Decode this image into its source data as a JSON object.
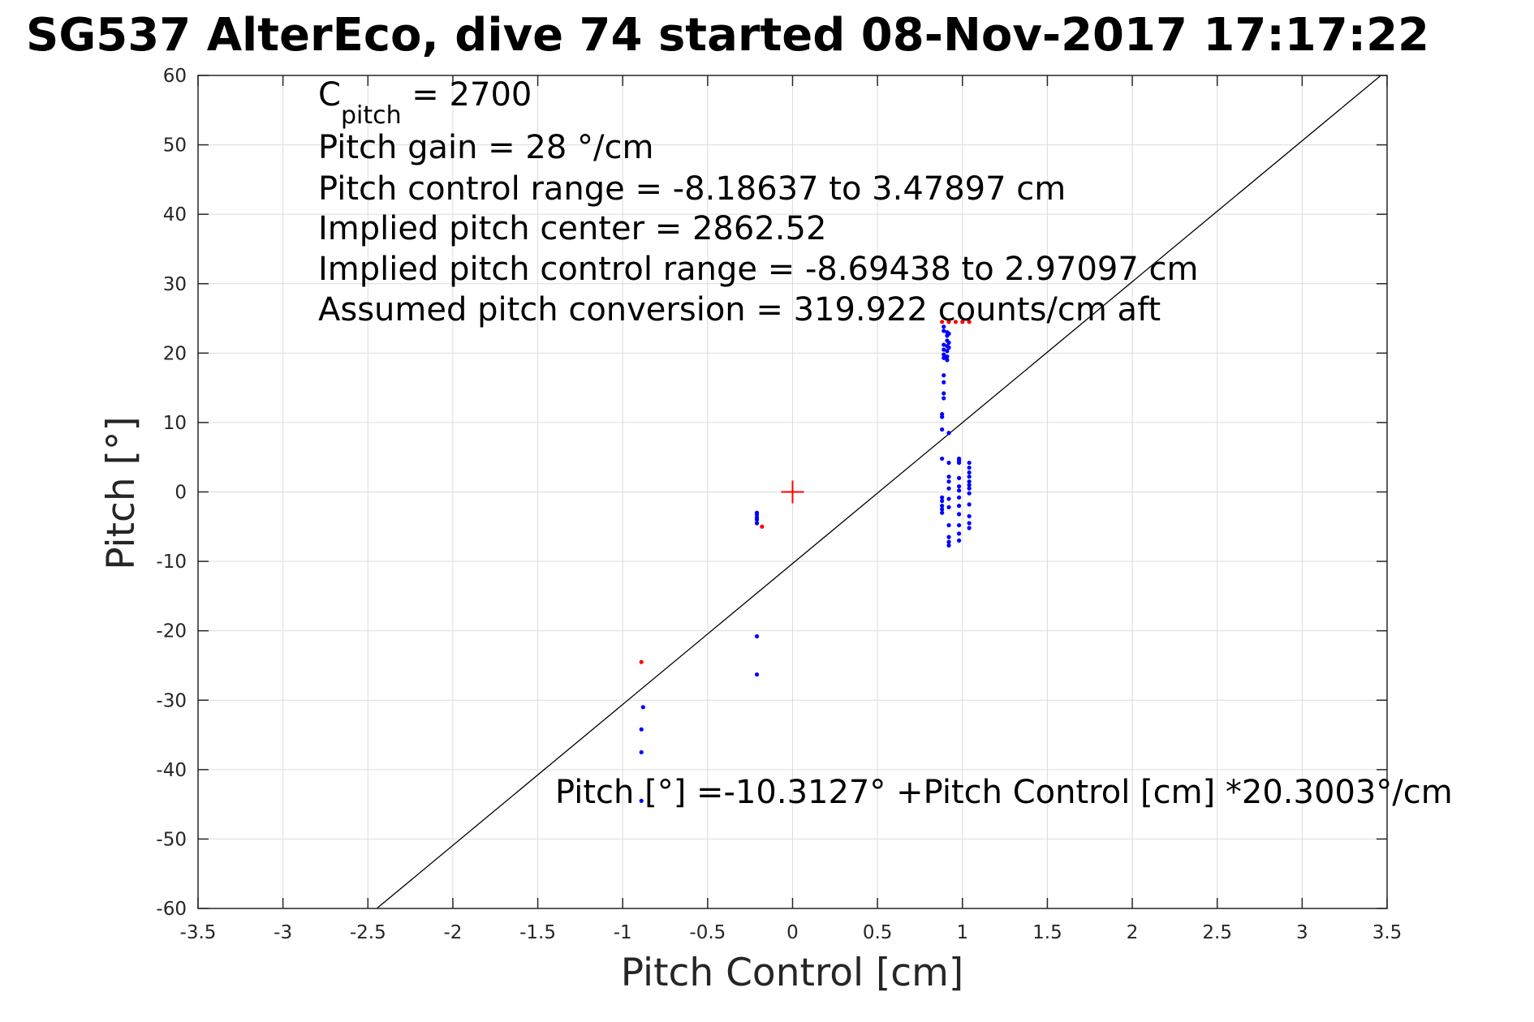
{
  "title": "SG537 AlterEco, dive 74 started 08-Nov-2017 17:17:22",
  "colors": {
    "climb": "#0000ff",
    "dive": "#ff0000",
    "fit_line": "#000000",
    "grid": "#dcdcdc"
  },
  "annotations": {
    "cpitch": {
      "symbol": "C",
      "subscript": "pitch",
      "value": " = 2700"
    },
    "pitch_gain": "Pitch gain = 28 °/cm",
    "control_range": "Pitch control range = -8.18637 to 3.47897 cm",
    "implied_center": "Implied pitch center = 2862.52",
    "implied_range": "Implied pitch control range = -8.69438 to 2.97097 cm",
    "conversion": "Assumed pitch conversion = 319.922 counts/cm aft",
    "fit_equation": "Pitch [°] =-10.3127° +Pitch Control [cm] *20.3003°/cm"
  },
  "chart_data": {
    "type": "scatter",
    "xlabel": "Pitch Control [cm]",
    "ylabel": "Pitch [°]",
    "xlim": [
      -3.5,
      3.5
    ],
    "ylim": [
      -60,
      60
    ],
    "xticks": [
      "-3.5",
      "-3",
      "-2.5",
      "-2",
      "-1.5",
      "-1",
      "-0.5",
      "0",
      "0.5",
      "1",
      "1.5",
      "2",
      "2.5",
      "3",
      "3.5"
    ],
    "yticks": [
      "-60",
      "-50",
      "-40",
      "-30",
      "-20",
      "-10",
      "0",
      "10",
      "20",
      "30",
      "40",
      "50",
      "60"
    ],
    "grid": true,
    "fit": {
      "intercept": -10.3127,
      "slope": 20.3003
    },
    "center_marker": {
      "x": 0,
      "y": 0
    },
    "series": [
      {
        "color": "#0000ff",
        "points": [
          [
            -0.88,
            -31.0
          ],
          [
            -0.89,
            -34.2
          ],
          [
            -0.89,
            -37.5
          ],
          [
            -0.89,
            -44.5
          ],
          [
            -0.21,
            -20.8
          ],
          [
            -0.21,
            -26.3
          ],
          [
            -0.21,
            -3.0
          ],
          [
            -0.21,
            -3.3
          ],
          [
            -0.21,
            -3.7
          ],
          [
            -0.21,
            -4.0
          ],
          [
            -0.21,
            -4.5
          ],
          [
            0.89,
            23.8
          ],
          [
            0.89,
            23.2
          ],
          [
            0.89,
            21.2
          ],
          [
            0.89,
            20.5
          ],
          [
            0.89,
            19.8
          ],
          [
            0.89,
            19.3
          ],
          [
            0.89,
            16.8
          ],
          [
            0.89,
            15.8
          ],
          [
            0.89,
            14.2
          ],
          [
            0.89,
            13.5
          ],
          [
            0.88,
            11.2
          ],
          [
            0.88,
            10.8
          ],
          [
            0.88,
            9.0
          ],
          [
            0.88,
            4.8
          ],
          [
            0.88,
            -0.8
          ],
          [
            0.88,
            -1.3
          ],
          [
            0.88,
            -2.0
          ],
          [
            0.88,
            -2.5
          ],
          [
            0.88,
            -3.0
          ],
          [
            0.91,
            23.0
          ],
          [
            0.91,
            22.5
          ],
          [
            0.91,
            21.8
          ],
          [
            0.91,
            21.0
          ],
          [
            0.91,
            20.3
          ],
          [
            0.91,
            19.5
          ],
          [
            0.91,
            19.0
          ],
          [
            0.92,
            22.8
          ],
          [
            0.92,
            21.5
          ],
          [
            0.92,
            20.8
          ],
          [
            0.92,
            8.5
          ],
          [
            0.92,
            4.2
          ],
          [
            0.92,
            2.2
          ],
          [
            0.92,
            1.5
          ],
          [
            0.92,
            0.5
          ],
          [
            0.92,
            -1.0
          ],
          [
            0.92,
            -2.2
          ],
          [
            0.92,
            -4.8
          ],
          [
            0.92,
            -6.5
          ],
          [
            0.92,
            -7.2
          ],
          [
            0.92,
            -7.7
          ],
          [
            0.98,
            4.8
          ],
          [
            0.98,
            4.5
          ],
          [
            0.98,
            4.2
          ],
          [
            0.98,
            2.0
          ],
          [
            0.98,
            0.8
          ],
          [
            0.98,
            0.2
          ],
          [
            0.98,
            -0.8
          ],
          [
            0.98,
            -2.0
          ],
          [
            0.98,
            -3.2
          ],
          [
            0.98,
            -4.8
          ],
          [
            0.98,
            -6.0
          ],
          [
            0.98,
            -7.0
          ],
          [
            1.04,
            4.2
          ],
          [
            1.04,
            3.5
          ],
          [
            1.04,
            2.8
          ],
          [
            1.04,
            2.2
          ],
          [
            1.04,
            1.5
          ],
          [
            1.04,
            1.0
          ],
          [
            1.04,
            0.5
          ],
          [
            1.04,
            -0.2
          ],
          [
            1.04,
            -1.8
          ],
          [
            1.04,
            -3.5
          ],
          [
            1.04,
            -4.5
          ],
          [
            1.04,
            -5.2
          ]
        ]
      },
      {
        "color": "#ff0000",
        "points": [
          [
            -0.89,
            -24.5
          ],
          [
            -0.18,
            -5.0
          ],
          [
            0.88,
            24.5
          ],
          [
            0.92,
            24.5
          ],
          [
            0.96,
            24.5
          ],
          [
            1.0,
            24.5
          ],
          [
            1.04,
            24.5
          ]
        ]
      }
    ]
  }
}
